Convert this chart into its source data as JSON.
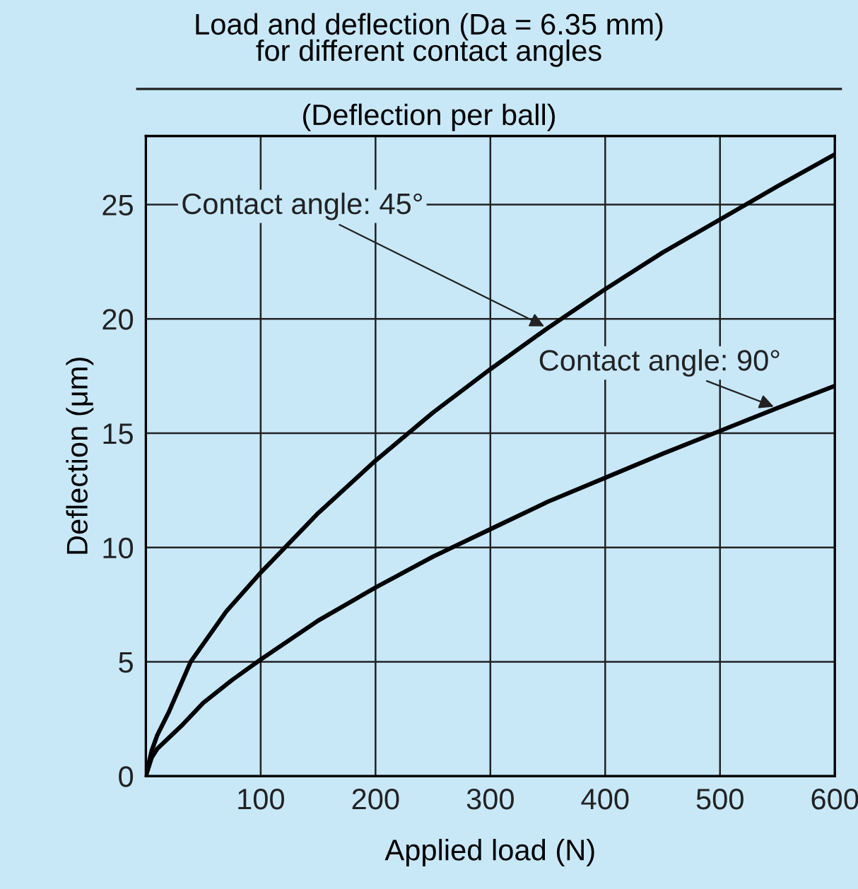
{
  "chart_data": {
    "type": "line",
    "title": "Load and deflection (Da = 6.35 mm)\nfor different contact angles",
    "subtitle": "(Deflection per ball)",
    "xlabel": "Applied load (N)",
    "ylabel": "Deflection (μm)",
    "series": [
      {
        "color": "#000000",
        "x": [
          0,
          5,
          10,
          20,
          39,
          70,
          100,
          150,
          200,
          250,
          300,
          350,
          400,
          450,
          500,
          550,
          600
        ],
        "values": [
          0,
          1.1,
          1.8,
          2.8,
          5.0,
          7.2,
          8.9,
          11.5,
          13.8,
          15.9,
          17.8,
          19.6,
          21.3,
          22.9,
          24.35,
          25.8,
          27.2
        ]
      },
      {
        "color": "#000000",
        "x": [
          0,
          5,
          10,
          31,
          50,
          75,
          100,
          150,
          200,
          250,
          300,
          350,
          400,
          450,
          500,
          550,
          600
        ],
        "values": [
          0,
          0.8,
          1.2,
          2.2,
          3.2,
          4.2,
          5.1,
          6.8,
          8.25,
          9.6,
          10.8,
          12.0,
          13.05,
          14.1,
          15.1,
          16.1,
          17.07
        ]
      }
    ],
    "annotations": [
      {
        "text": "Contact angle: 45°",
        "x": 350,
        "y": 19.6
      },
      {
        "text": "Contact angle: 90°",
        "x": 550,
        "y": 16.1
      }
    ],
    "xlim": [
      0,
      600
    ],
    "ylim": [
      0,
      28
    ],
    "xticks": [
      {
        "value": 0,
        "label": null
      },
      100,
      200,
      300,
      400,
      500,
      600
    ],
    "yticks": [
      0,
      5,
      10,
      15,
      20,
      25
    ],
    "grid": true,
    "marker": "none",
    "line_style": "solid",
    "legend": false
  }
}
